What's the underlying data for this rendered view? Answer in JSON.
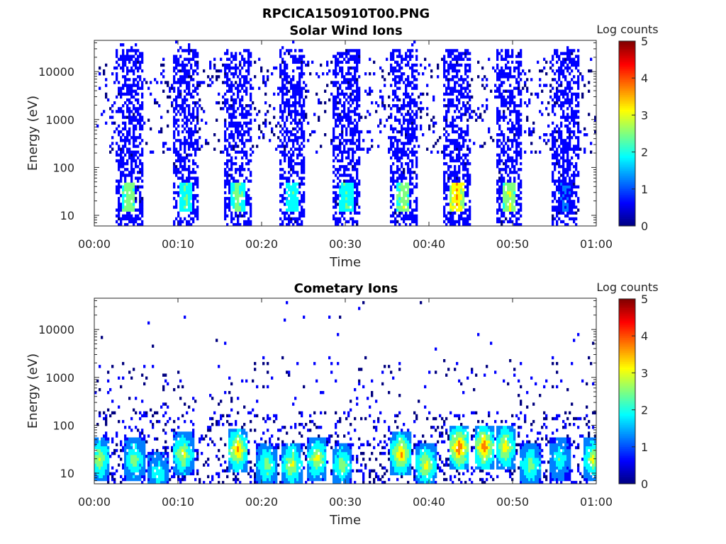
{
  "figure": {
    "suptitle": "RPCICA150910T00.PNG"
  },
  "colormap": [
    "#00007f",
    "#0000ff",
    "#007fff",
    "#00ffff",
    "#7fff7f",
    "#ffff00",
    "#ff7f00",
    "#ff0000",
    "#7f0000"
  ],
  "chart_data": [
    {
      "type": "heatmap",
      "title": "Solar Wind Ions",
      "xlabel": "Time",
      "ylabel": "Energy (eV)",
      "x_ticks": [
        "00:00",
        "00:10",
        "00:20",
        "00:30",
        "00:40",
        "00:50",
        "01:00"
      ],
      "x_range_minutes": [
        0,
        60
      ],
      "y_scale": "log",
      "y_range": [
        6,
        45000
      ],
      "y_ticks": [
        "10",
        "100",
        "1000",
        "10000"
      ],
      "colorbar": {
        "label": "Log counts",
        "range": [
          0,
          5
        ],
        "ticks": [
          "0",
          "1",
          "2",
          "3",
          "4",
          "5"
        ]
      },
      "bursts": [
        {
          "center": 4.0,
          "width": 3.2,
          "peak": 2.5
        },
        {
          "center": 10.8,
          "width": 3.2,
          "peak": 2.0
        },
        {
          "center": 17.0,
          "width": 3.2,
          "peak": 2.3
        },
        {
          "center": 23.5,
          "width": 3.2,
          "peak": 1.9
        },
        {
          "center": 30.0,
          "width": 3.2,
          "peak": 2.0
        },
        {
          "center": 36.8,
          "width": 3.2,
          "peak": 2.5
        },
        {
          "center": 43.2,
          "width": 3.2,
          "peak": 3.3
        },
        {
          "center": 49.5,
          "width": 3.2,
          "peak": 2.6
        },
        {
          "center": 56.2,
          "width": 3.2,
          "peak": 0.8
        }
      ]
    },
    {
      "type": "heatmap",
      "title": "Cometary Ions",
      "xlabel": "Time",
      "ylabel": "Energy (eV)",
      "x_ticks": [
        "00:00",
        "00:10",
        "00:20",
        "00:30",
        "00:40",
        "00:50",
        "01:00"
      ],
      "x_range_minutes": [
        0,
        60
      ],
      "y_scale": "log",
      "y_range": [
        6,
        45000
      ],
      "y_ticks": [
        "10",
        "100",
        "1000",
        "10000"
      ],
      "colorbar": {
        "label": "Log counts",
        "range": [
          0,
          5
        ],
        "ticks": [
          "0",
          "1",
          "2",
          "3",
          "4",
          "5"
        ]
      },
      "hotspots": [
        {
          "t": 0.5,
          "e": 20,
          "v": 2.8
        },
        {
          "t": 4.7,
          "e": 20,
          "v": 2.5
        },
        {
          "t": 7.5,
          "e": 10,
          "v": 2.0
        },
        {
          "t": 10.5,
          "e": 25,
          "v": 2.9
        },
        {
          "t": 17.0,
          "e": 30,
          "v": 3.5
        },
        {
          "t": 20.5,
          "e": 15,
          "v": 2.5
        },
        {
          "t": 23.5,
          "e": 15,
          "v": 2.9
        },
        {
          "t": 26.5,
          "e": 20,
          "v": 3.0
        },
        {
          "t": 29.5,
          "e": 15,
          "v": 2.5
        },
        {
          "t": 36.5,
          "e": 25,
          "v": 3.5
        },
        {
          "t": 39.5,
          "e": 15,
          "v": 3.0
        },
        {
          "t": 43.5,
          "e": 35,
          "v": 4.0
        },
        {
          "t": 46.5,
          "e": 35,
          "v": 3.8
        },
        {
          "t": 49.0,
          "e": 35,
          "v": 3.2
        },
        {
          "t": 52.0,
          "e": 15,
          "v": 2.5
        },
        {
          "t": 55.5,
          "e": 20,
          "v": 2.0
        },
        {
          "t": 59.5,
          "e": 20,
          "v": 2.8
        }
      ]
    }
  ]
}
